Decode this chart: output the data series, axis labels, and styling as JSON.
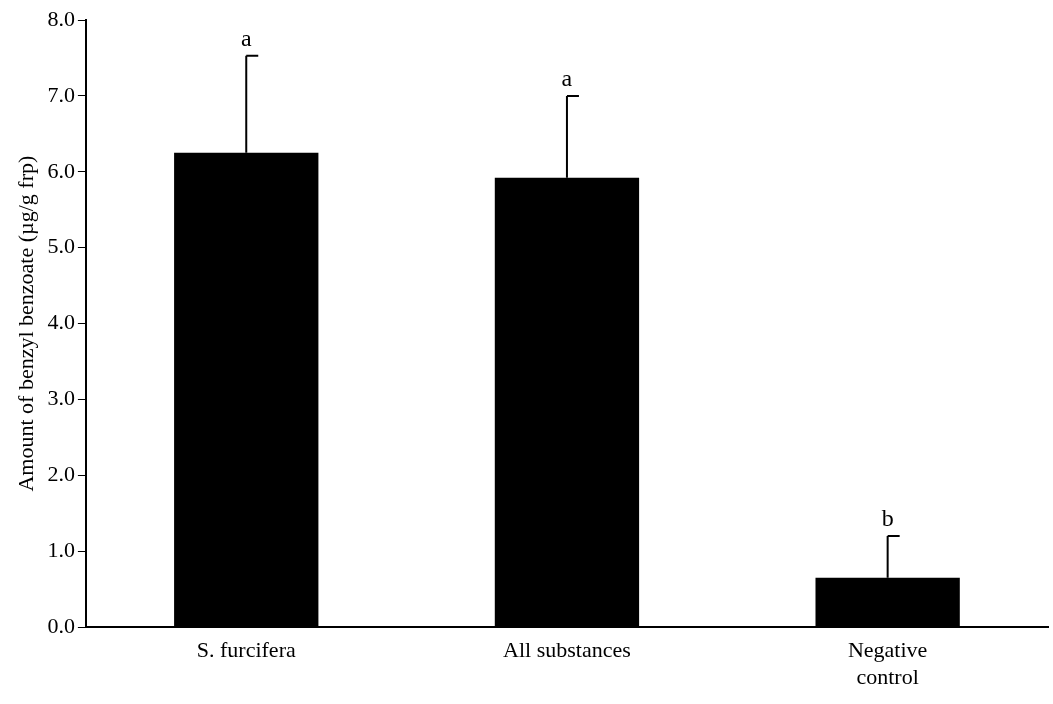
{
  "chart_data": {
    "type": "bar",
    "ylabel": "Amount of benzyl benzoate (µg/g frp)",
    "categories": [
      "S. furcifera",
      "All substances",
      "Negative control"
    ],
    "values": [
      6.25,
      5.92,
      0.65
    ],
    "color": "#000000",
    "errors": [
      [
        6.25,
        7.53
      ],
      [
        5.92,
        7.0
      ],
      [
        0.65,
        1.2
      ]
    ],
    "ylim": [
      0,
      8
    ],
    "yticks": [
      {
        "value": 0,
        "label": "0.0"
      },
      {
        "value": 1,
        "label": "1.0"
      },
      {
        "value": 2,
        "label": "2.0"
      },
      {
        "value": 3,
        "label": "3.0"
      },
      {
        "value": 4,
        "label": "4.0"
      },
      {
        "value": 5,
        "label": "5.0"
      },
      {
        "value": 6,
        "label": "6.0"
      },
      {
        "value": 7,
        "label": "7.0"
      },
      {
        "value": 8,
        "label": "8.0"
      }
    ],
    "annotations": [
      {
        "text": "a",
        "x": "S. furcifera",
        "y": 7.53
      },
      {
        "text": "a",
        "x": "All substances",
        "y": 7.0
      },
      {
        "text": "b",
        "x": "Negative control",
        "y": 1.2
      }
    ],
    "grid": false,
    "legend": false
  }
}
